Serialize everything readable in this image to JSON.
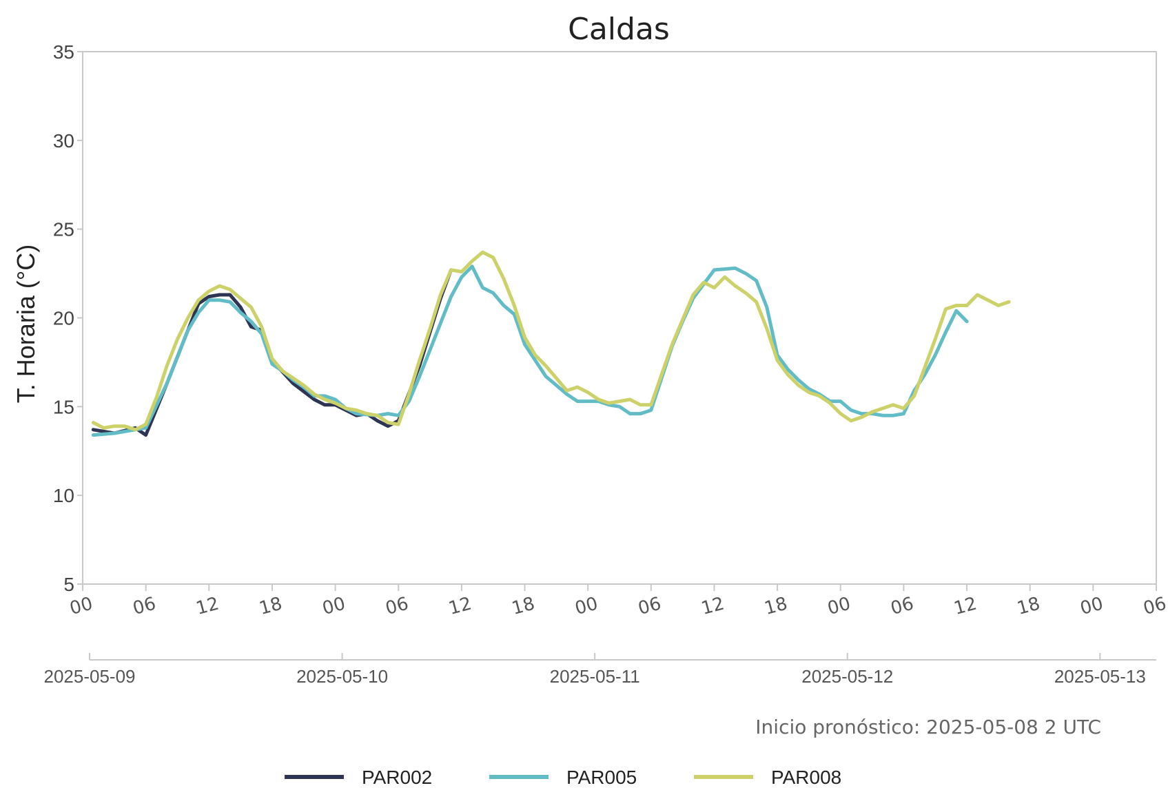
{
  "chart_data": {
    "type": "line",
    "title": "Caldas",
    "ylabel": "T. Horaria (°C)",
    "xlabel": "",
    "ylim": [
      5,
      35
    ],
    "yticks": [
      "5",
      "10",
      "15",
      "20",
      "25",
      "30",
      "35"
    ],
    "x_unit": "datetime (hourly)",
    "xlim": [
      "2025-05-09 00:00",
      "2025-05-13 06:00"
    ],
    "hour_ticks": [
      "00",
      "06",
      "12",
      "18",
      "00",
      "06",
      "12",
      "18",
      "00",
      "06",
      "12",
      "18",
      "00",
      "06",
      "12",
      "18",
      "00",
      "06"
    ],
    "date_ticks": [
      "2025-05-09",
      "2025-05-10",
      "2025-05-11",
      "2025-05-12",
      "2025-05-13"
    ],
    "grid": false,
    "legend_position": "bottom-center",
    "annotation": "Inicio pronóstico: 2025-05-08 2 UTC",
    "series": [
      {
        "name": "PAR002",
        "color": "#2e3553",
        "points": [
          [
            "2025-05-09 01:00",
            13.7
          ],
          [
            "2025-05-09 03:00",
            13.5
          ],
          [
            "2025-05-09 05:00",
            13.8
          ],
          [
            "2025-05-09 06:00",
            13.4
          ],
          [
            "2025-05-09 08:00",
            16.3
          ],
          [
            "2025-05-09 10:00",
            19.3
          ],
          [
            "2025-05-09 11:00",
            20.8
          ],
          [
            "2025-05-09 12:00",
            21.2
          ],
          [
            "2025-05-09 13:00",
            21.3
          ],
          [
            "2025-05-09 14:00",
            21.3
          ],
          [
            "2025-05-09 15:00",
            20.6
          ],
          [
            "2025-05-09 16:00",
            19.5
          ],
          [
            "2025-05-09 17:00",
            19.3
          ],
          [
            "2025-05-09 18:00",
            17.6
          ],
          [
            "2025-05-09 20:00",
            16.3
          ],
          [
            "2025-05-09 22:00",
            15.4
          ],
          [
            "2025-05-09 23:00",
            15.1
          ],
          [
            "2025-05-10 00:00",
            15.1
          ],
          [
            "2025-05-10 02:00",
            14.5
          ],
          [
            "2025-05-10 03:00",
            14.6
          ],
          [
            "2025-05-10 04:00",
            14.2
          ],
          [
            "2025-05-10 05:00",
            13.9
          ],
          [
            "2025-05-10 06:00",
            14.2
          ],
          [
            "2025-05-10 08:00",
            17.3
          ],
          [
            "2025-05-10 10:00",
            21.1
          ],
          [
            "2025-05-10 11:00",
            22.7
          ]
        ]
      },
      {
        "name": "PAR005",
        "color": "#62bcc6",
        "points": [
          [
            "2025-05-09 01:00",
            13.4
          ],
          [
            "2025-05-09 03:00",
            13.5
          ],
          [
            "2025-05-09 05:00",
            13.7
          ],
          [
            "2025-05-09 06:00",
            13.8
          ],
          [
            "2025-05-09 08:00",
            16.3
          ],
          [
            "2025-05-09 10:00",
            19.3
          ],
          [
            "2025-05-09 11:00",
            20.3
          ],
          [
            "2025-05-09 12:00",
            21.0
          ],
          [
            "2025-05-09 13:00",
            21.0
          ],
          [
            "2025-05-09 14:00",
            20.9
          ],
          [
            "2025-05-09 15:00",
            20.3
          ],
          [
            "2025-05-09 16:00",
            19.8
          ],
          [
            "2025-05-09 17:00",
            19.1
          ],
          [
            "2025-05-09 18:00",
            17.4
          ],
          [
            "2025-05-09 19:00",
            17.0
          ],
          [
            "2025-05-09 20:00",
            16.5
          ],
          [
            "2025-05-09 21:00",
            16.1
          ],
          [
            "2025-05-09 22:00",
            15.6
          ],
          [
            "2025-05-09 23:00",
            15.6
          ],
          [
            "2025-05-10 00:00",
            15.4
          ],
          [
            "2025-05-10 01:00",
            14.9
          ],
          [
            "2025-05-10 02:00",
            14.6
          ],
          [
            "2025-05-10 04:00",
            14.5
          ],
          [
            "2025-05-10 05:00",
            14.6
          ],
          [
            "2025-05-10 06:00",
            14.5
          ],
          [
            "2025-05-10 07:00",
            15.3
          ],
          [
            "2025-05-10 08:00",
            16.7
          ],
          [
            "2025-05-10 09:00",
            18.2
          ],
          [
            "2025-05-10 10:00",
            19.7
          ],
          [
            "2025-05-10 11:00",
            21.2
          ],
          [
            "2025-05-10 12:00",
            22.3
          ],
          [
            "2025-05-10 13:00",
            22.9
          ],
          [
            "2025-05-10 14:00",
            21.7
          ],
          [
            "2025-05-10 15:00",
            21.4
          ],
          [
            "2025-05-10 16:00",
            20.7
          ],
          [
            "2025-05-10 17:00",
            20.2
          ],
          [
            "2025-05-10 18:00",
            18.5
          ],
          [
            "2025-05-10 19:00",
            17.6
          ],
          [
            "2025-05-10 20:00",
            16.7
          ],
          [
            "2025-05-10 21:00",
            16.2
          ],
          [
            "2025-05-10 22:00",
            15.7
          ],
          [
            "2025-05-10 23:00",
            15.3
          ],
          [
            "2025-05-11 00:00",
            15.3
          ],
          [
            "2025-05-11 01:00",
            15.3
          ],
          [
            "2025-05-11 02:00",
            15.1
          ],
          [
            "2025-05-11 03:00",
            15.0
          ],
          [
            "2025-05-11 04:00",
            14.6
          ],
          [
            "2025-05-11 05:00",
            14.6
          ],
          [
            "2025-05-11 06:00",
            14.8
          ],
          [
            "2025-05-11 07:00",
            16.6
          ],
          [
            "2025-05-11 08:00",
            18.4
          ],
          [
            "2025-05-11 09:00",
            19.8
          ],
          [
            "2025-05-11 10:00",
            21.1
          ],
          [
            "2025-05-11 11:00",
            21.9
          ],
          [
            "2025-05-11 12:00",
            22.7
          ],
          [
            "2025-05-11 14:00",
            22.8
          ],
          [
            "2025-05-11 15:00",
            22.5
          ],
          [
            "2025-05-11 16:00",
            22.1
          ],
          [
            "2025-05-11 17:00",
            20.6
          ],
          [
            "2025-05-11 18:00",
            17.9
          ],
          [
            "2025-05-11 19:00",
            17.1
          ],
          [
            "2025-05-11 20:00",
            16.5
          ],
          [
            "2025-05-11 21:00",
            16.0
          ],
          [
            "2025-05-11 22:00",
            15.7
          ],
          [
            "2025-05-11 23:00",
            15.3
          ],
          [
            "2025-05-12 00:00",
            15.3
          ],
          [
            "2025-05-12 01:00",
            14.8
          ],
          [
            "2025-05-12 02:00",
            14.6
          ],
          [
            "2025-05-12 03:00",
            14.6
          ],
          [
            "2025-05-12 04:00",
            14.5
          ],
          [
            "2025-05-12 05:00",
            14.5
          ],
          [
            "2025-05-12 06:00",
            14.6
          ],
          [
            "2025-05-12 07:00",
            15.9
          ],
          [
            "2025-05-12 08:00",
            16.8
          ],
          [
            "2025-05-12 09:00",
            17.9
          ],
          [
            "2025-05-12 10:00",
            19.2
          ],
          [
            "2025-05-12 11:00",
            20.4
          ],
          [
            "2025-05-12 12:00",
            19.8
          ]
        ]
      },
      {
        "name": "PAR008",
        "color": "#ccd16a",
        "points": [
          [
            "2025-05-09 01:00",
            14.1
          ],
          [
            "2025-05-09 02:00",
            13.8
          ],
          [
            "2025-05-09 03:00",
            13.9
          ],
          [
            "2025-05-09 04:00",
            13.9
          ],
          [
            "2025-05-09 05:00",
            13.7
          ],
          [
            "2025-05-09 06:00",
            14.0
          ],
          [
            "2025-05-09 07:00",
            15.5
          ],
          [
            "2025-05-09 08:00",
            17.3
          ],
          [
            "2025-05-09 09:00",
            18.8
          ],
          [
            "2025-05-09 10:00",
            20.0
          ],
          [
            "2025-05-09 11:00",
            21.0
          ],
          [
            "2025-05-09 12:00",
            21.5
          ],
          [
            "2025-05-09 13:00",
            21.8
          ],
          [
            "2025-05-09 14:00",
            21.6
          ],
          [
            "2025-05-09 15:00",
            21.1
          ],
          [
            "2025-05-09 16:00",
            20.6
          ],
          [
            "2025-05-09 17:00",
            19.5
          ],
          [
            "2025-05-09 18:00",
            17.7
          ],
          [
            "2025-05-09 19:00",
            17.0
          ],
          [
            "2025-05-09 20:00",
            16.6
          ],
          [
            "2025-05-09 21:00",
            16.2
          ],
          [
            "2025-05-09 22:00",
            15.7
          ],
          [
            "2025-05-09 23:00",
            15.4
          ],
          [
            "2025-05-10 00:00",
            15.2
          ],
          [
            "2025-05-10 01:00",
            14.9
          ],
          [
            "2025-05-10 02:00",
            14.8
          ],
          [
            "2025-05-10 03:00",
            14.6
          ],
          [
            "2025-05-10 04:00",
            14.5
          ],
          [
            "2025-05-10 05:00",
            14.1
          ],
          [
            "2025-05-10 06:00",
            14.0
          ],
          [
            "2025-05-10 07:00",
            15.7
          ],
          [
            "2025-05-10 08:00",
            17.6
          ],
          [
            "2025-05-10 09:00",
            19.4
          ],
          [
            "2025-05-10 10:00",
            21.3
          ],
          [
            "2025-05-10 11:00",
            22.7
          ],
          [
            "2025-05-10 12:00",
            22.6
          ],
          [
            "2025-05-10 13:00",
            23.2
          ],
          [
            "2025-05-10 14:00",
            23.7
          ],
          [
            "2025-05-10 15:00",
            23.4
          ],
          [
            "2025-05-10 16:00",
            22.2
          ],
          [
            "2025-05-10 17:00",
            20.7
          ],
          [
            "2025-05-10 18:00",
            18.9
          ],
          [
            "2025-05-10 19:00",
            17.9
          ],
          [
            "2025-05-10 20:00",
            17.3
          ],
          [
            "2025-05-10 21:00",
            16.6
          ],
          [
            "2025-05-10 22:00",
            15.9
          ],
          [
            "2025-05-10 23:00",
            16.1
          ],
          [
            "2025-05-11 00:00",
            15.8
          ],
          [
            "2025-05-11 01:00",
            15.4
          ],
          [
            "2025-05-11 02:00",
            15.2
          ],
          [
            "2025-05-11 03:00",
            15.3
          ],
          [
            "2025-05-11 04:00",
            15.4
          ],
          [
            "2025-05-11 05:00",
            15.1
          ],
          [
            "2025-05-11 06:00",
            15.1
          ],
          [
            "2025-05-11 07:00",
            16.8
          ],
          [
            "2025-05-11 08:00",
            18.5
          ],
          [
            "2025-05-11 09:00",
            19.9
          ],
          [
            "2025-05-11 10:00",
            21.3
          ],
          [
            "2025-05-11 11:00",
            22.0
          ],
          [
            "2025-05-11 12:00",
            21.7
          ],
          [
            "2025-05-11 13:00",
            22.3
          ],
          [
            "2025-05-11 14:00",
            21.8
          ],
          [
            "2025-05-11 15:00",
            21.4
          ],
          [
            "2025-05-11 16:00",
            20.9
          ],
          [
            "2025-05-11 17:00",
            19.4
          ],
          [
            "2025-05-11 18:00",
            17.6
          ],
          [
            "2025-05-11 19:00",
            16.8
          ],
          [
            "2025-05-11 20:00",
            16.2
          ],
          [
            "2025-05-11 21:00",
            15.8
          ],
          [
            "2025-05-11 22:00",
            15.6
          ],
          [
            "2025-05-11 23:00",
            15.2
          ],
          [
            "2025-05-12 00:00",
            14.6
          ],
          [
            "2025-05-12 01:00",
            14.2
          ],
          [
            "2025-05-12 02:00",
            14.4
          ],
          [
            "2025-05-12 03:00",
            14.7
          ],
          [
            "2025-05-12 04:00",
            14.9
          ],
          [
            "2025-05-12 05:00",
            15.1
          ],
          [
            "2025-05-12 06:00",
            14.9
          ],
          [
            "2025-05-12 07:00",
            15.6
          ],
          [
            "2025-05-12 08:00",
            17.2
          ],
          [
            "2025-05-12 09:00",
            18.8
          ],
          [
            "2025-05-12 10:00",
            20.5
          ],
          [
            "2025-05-12 11:00",
            20.7
          ],
          [
            "2025-05-12 12:00",
            20.7
          ],
          [
            "2025-05-12 13:00",
            21.3
          ],
          [
            "2025-05-12 14:00",
            21.0
          ],
          [
            "2025-05-12 15:00",
            20.7
          ],
          [
            "2025-05-12 16:00",
            20.9
          ]
        ]
      }
    ]
  }
}
